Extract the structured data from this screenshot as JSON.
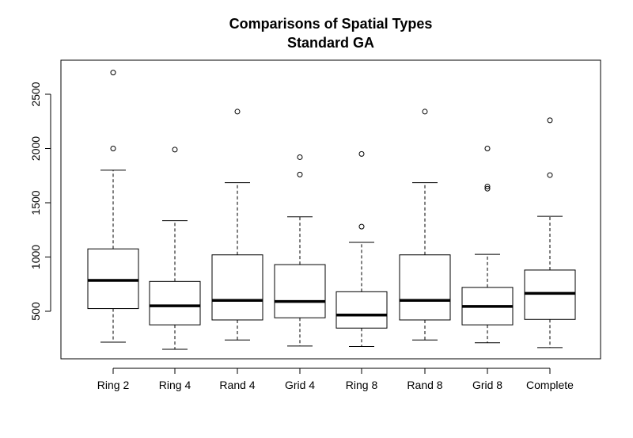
{
  "chart_data": {
    "type": "boxplot",
    "title": "Comparisons of Spatial Types",
    "subtitle": "Standard GA",
    "xlabel": "",
    "ylabel": "",
    "ylim": [
      100,
      2650
    ],
    "yticks": [
      500,
      1000,
      1500,
      2000,
      2500
    ],
    "grid": false,
    "legend": "none",
    "categories": [
      "Ring 2",
      "Ring 4",
      "Rand 4",
      "Grid 4",
      "Ring 8",
      "Rand 8",
      "Grid 8",
      "Complete"
    ],
    "boxes": [
      {
        "whisker_low": 215,
        "q1": 525,
        "median": 785,
        "q3": 1075,
        "whisker_high": 1800,
        "outliers": [
          2000,
          2700
        ]
      },
      {
        "whisker_low": 150,
        "q1": 375,
        "median": 550,
        "q3": 775,
        "whisker_high": 1335,
        "outliers": [
          1990
        ]
      },
      {
        "whisker_low": 235,
        "q1": 420,
        "median": 600,
        "q3": 1020,
        "whisker_high": 1685,
        "outliers": [
          2340
        ]
      },
      {
        "whisker_low": 180,
        "q1": 440,
        "median": 590,
        "q3": 930,
        "whisker_high": 1370,
        "outliers": [
          1760,
          1920
        ]
      },
      {
        "whisker_low": 175,
        "q1": 345,
        "median": 465,
        "q3": 680,
        "whisker_high": 1135,
        "outliers": [
          1280,
          1950
        ]
      },
      {
        "whisker_low": 235,
        "q1": 420,
        "median": 600,
        "q3": 1020,
        "whisker_high": 1685,
        "outliers": [
          2340
        ]
      },
      {
        "whisker_low": 210,
        "q1": 375,
        "median": 545,
        "q3": 720,
        "whisker_high": 1025,
        "outliers": [
          1630,
          1650,
          2000
        ]
      },
      {
        "whisker_low": 165,
        "q1": 425,
        "median": 665,
        "q3": 880,
        "whisker_high": 1375,
        "outliers": [
          1755,
          2260
        ]
      }
    ]
  }
}
